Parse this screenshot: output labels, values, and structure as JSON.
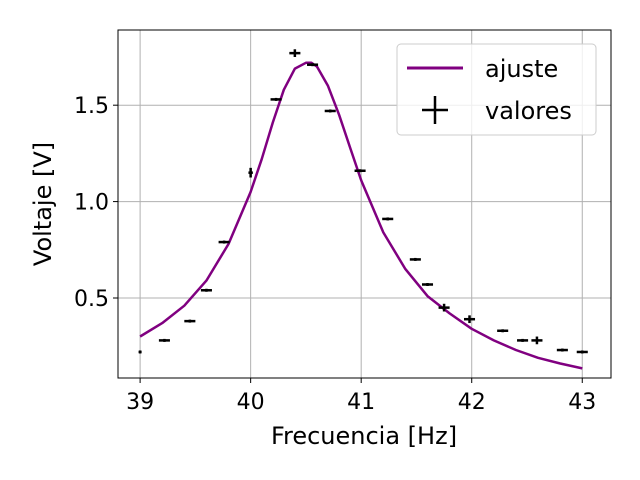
{
  "chart_data": {
    "type": "scatter",
    "title": "",
    "xlabel": "Frecuencia [Hz]",
    "ylabel": "Voltaje [V]",
    "xlim": [
      38.8,
      43.26
    ],
    "ylim": [
      0.085,
      1.89
    ],
    "xticks": [
      39,
      40,
      41,
      42,
      43
    ],
    "yticks": [
      0.5,
      1.0,
      1.5
    ],
    "xtick_labels": [
      "39",
      "40",
      "41",
      "42",
      "43"
    ],
    "ytick_labels": [
      "0.5",
      "1.0",
      "1.5"
    ],
    "grid": true,
    "legend_position": "top-right",
    "colors": {
      "fit": "#800080",
      "points": "#000000",
      "grid": "#b0b0b0"
    },
    "series": [
      {
        "name": "ajuste",
        "kind": "line",
        "x": [
          39.0,
          39.2,
          39.4,
          39.6,
          39.8,
          40.0,
          40.1,
          40.2,
          40.3,
          40.4,
          40.5,
          40.55,
          40.6,
          40.7,
          40.8,
          40.9,
          41.0,
          41.2,
          41.4,
          41.6,
          41.8,
          42.0,
          42.2,
          42.4,
          42.6,
          42.8,
          43.0
        ],
        "y": [
          0.3,
          0.37,
          0.46,
          0.59,
          0.78,
          1.05,
          1.22,
          1.41,
          1.58,
          1.69,
          1.72,
          1.72,
          1.7,
          1.6,
          1.45,
          1.28,
          1.11,
          0.84,
          0.65,
          0.51,
          0.42,
          0.34,
          0.28,
          0.23,
          0.19,
          0.16,
          0.135
        ]
      },
      {
        "name": "valores",
        "kind": "errorbar",
        "x": [
          39.0,
          39.22,
          39.45,
          39.6,
          39.76,
          40.0,
          40.23,
          40.4,
          40.56,
          40.72,
          40.99,
          41.24,
          41.49,
          41.6,
          41.75,
          41.98,
          42.28,
          42.46,
          42.59,
          42.82,
          43.0
        ],
        "y": [
          0.22,
          0.28,
          0.38,
          0.54,
          0.79,
          1.15,
          1.53,
          1.77,
          1.71,
          1.47,
          1.16,
          0.91,
          0.7,
          0.57,
          0.45,
          0.39,
          0.33,
          0.28,
          0.28,
          0.23,
          0.22
        ],
        "xerr": [
          0.01,
          0.05,
          0.05,
          0.05,
          0.05,
          0.02,
          0.05,
          0.05,
          0.05,
          0.05,
          0.05,
          0.05,
          0.05,
          0.05,
          0.05,
          0.05,
          0.05,
          0.05,
          0.05,
          0.05,
          0.05
        ],
        "yerr": [
          0.0,
          0.005,
          0.005,
          0.005,
          0.005,
          0.025,
          0.005,
          0.02,
          0.005,
          0.005,
          0.005,
          0.005,
          0.005,
          0.005,
          0.02,
          0.02,
          0.005,
          0.005,
          0.02,
          0.005,
          0.005
        ]
      }
    ]
  }
}
